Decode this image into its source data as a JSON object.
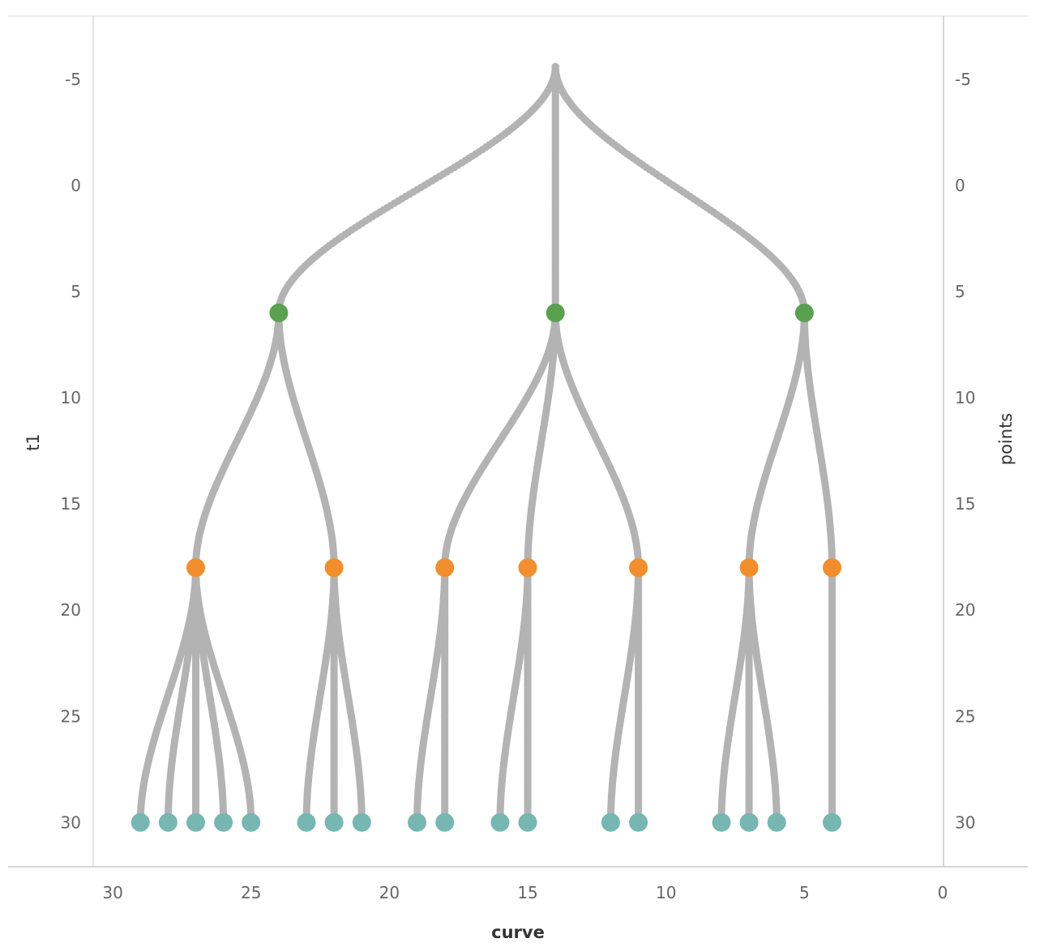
{
  "chart_data": {
    "type": "scatter",
    "title": "",
    "xlabel": "curve",
    "ylabel": "t1",
    "ylabel_right": "points",
    "x_reversed": true,
    "y_reversed": true,
    "xlim": [
      0,
      30
    ],
    "ylim": [
      -5,
      30
    ],
    "x_ticks": [
      "30",
      "25",
      "20",
      "15",
      "10",
      "5",
      "0"
    ],
    "y_ticks": [
      "-5",
      "0",
      "5",
      "10",
      "15",
      "20",
      "25",
      "30"
    ],
    "y_ticks_right": [
      "-5",
      "0",
      "5",
      "10",
      "15",
      "20",
      "25",
      "30"
    ],
    "grid": false,
    "colors": {
      "path": "#b3b3b3",
      "level1": "#59a14f",
      "level2": "#f28e2b",
      "leaf": "#76b7b2",
      "axis": "#c8c8c8",
      "tick_text": "#666666",
      "title_text": "#333333"
    },
    "root": {
      "x": 14,
      "y": -5.6
    },
    "level1_nodes": [
      {
        "x": 24,
        "y": 6
      },
      {
        "x": 14,
        "y": 6
      },
      {
        "x": 5,
        "y": 6
      }
    ],
    "level2_nodes": [
      {
        "x": 27,
        "y": 18,
        "parent": 0
      },
      {
        "x": 22,
        "y": 18,
        "parent": 0
      },
      {
        "x": 18,
        "y": 18,
        "parent": 1
      },
      {
        "x": 15,
        "y": 18,
        "parent": 1
      },
      {
        "x": 11,
        "y": 18,
        "parent": 1
      },
      {
        "x": 7,
        "y": 18,
        "parent": 2
      },
      {
        "x": 4,
        "y": 18,
        "parent": 2
      }
    ],
    "leaf_nodes": [
      {
        "x": 29,
        "y": 30,
        "parent": 0
      },
      {
        "x": 28,
        "y": 30,
        "parent": 0
      },
      {
        "x": 27,
        "y": 30,
        "parent": 0
      },
      {
        "x": 26,
        "y": 30,
        "parent": 0
      },
      {
        "x": 25,
        "y": 30,
        "parent": 0
      },
      {
        "x": 23,
        "y": 30,
        "parent": 1
      },
      {
        "x": 22,
        "y": 30,
        "parent": 1
      },
      {
        "x": 21,
        "y": 30,
        "parent": 1
      },
      {
        "x": 19,
        "y": 30,
        "parent": 2
      },
      {
        "x": 18,
        "y": 30,
        "parent": 2
      },
      {
        "x": 16,
        "y": 30,
        "parent": 3
      },
      {
        "x": 15,
        "y": 30,
        "parent": 3
      },
      {
        "x": 12,
        "y": 30,
        "parent": 4
      },
      {
        "x": 11,
        "y": 30,
        "parent": 4
      },
      {
        "x": 8,
        "y": 30,
        "parent": 5
      },
      {
        "x": 7,
        "y": 30,
        "parent": 5
      },
      {
        "x": 6,
        "y": 30,
        "parent": 5
      },
      {
        "x": 4,
        "y": 30,
        "parent": 6
      }
    ]
  }
}
